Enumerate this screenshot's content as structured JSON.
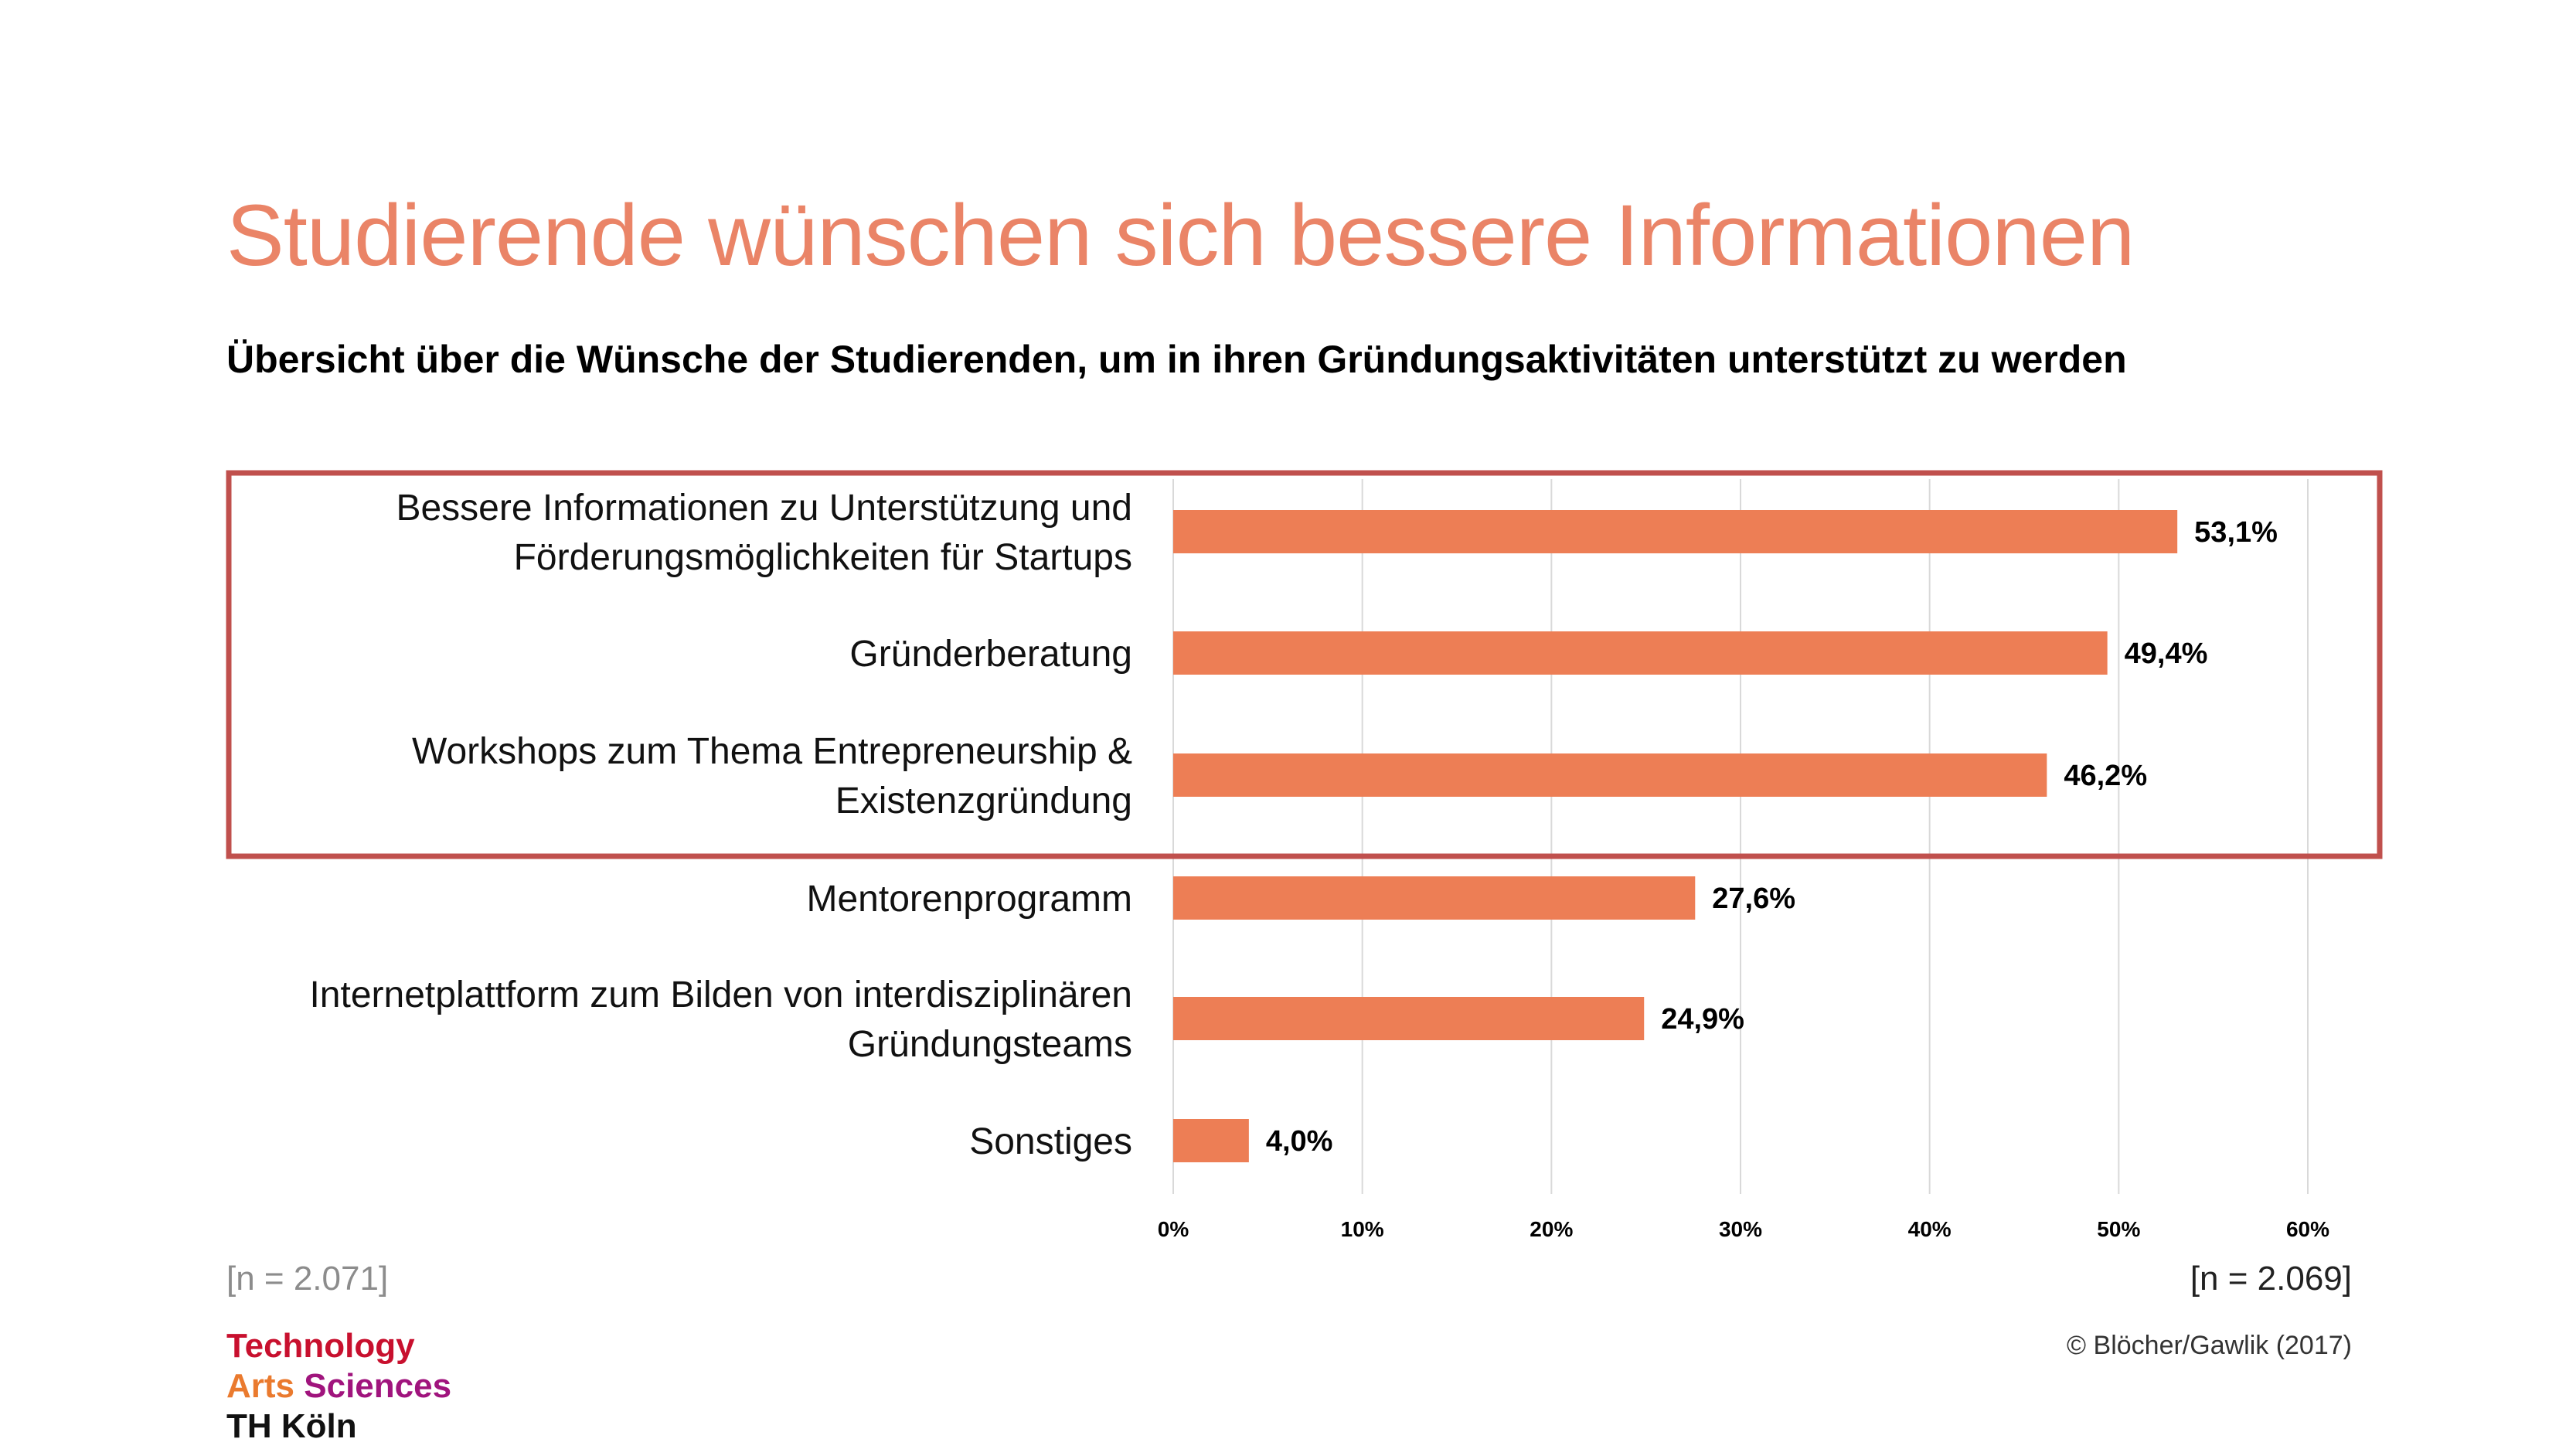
{
  "title": "Studierende wünschen sich bessere Informationen",
  "subtitle": "Übersicht über die Wünsche der Studierenden, um in ihren Gründungsaktivitäten unterstützt zu werden",
  "footer": {
    "n_left": "[n = 2.071]",
    "n_right": "[n = 2.069]",
    "copyright": "© Blöcher/Gawlik (2017)"
  },
  "logo": {
    "line1": "Technology",
    "line2a": "Arts",
    "line2b": "Sciences",
    "line3": "TH Köln"
  },
  "colors": {
    "bar": "#ed7e55",
    "highlight_box": "#c0504d",
    "title": "#ea8467",
    "grid": "#d9d9d9"
  },
  "chart_data": {
    "type": "bar",
    "orientation": "horizontal",
    "categories": [
      [
        "Bessere Informationen zu Unterstützung und",
        "Förderungsmöglichkeiten für Startups"
      ],
      [
        "Gründerberatung"
      ],
      [
        "Workshops zum Thema Entrepreneurship &",
        "Existenzgründung"
      ],
      [
        "Mentorenprogramm"
      ],
      [
        "Internetplattform zum Bilden von interdisziplinären",
        "Gründungsteams"
      ],
      [
        "Sonstiges"
      ]
    ],
    "values": [
      53.1,
      49.4,
      46.2,
      27.6,
      24.9,
      4.0
    ],
    "value_labels": [
      "53,1%",
      "49,4%",
      "46,2%",
      "27,6%",
      "24,9%",
      "4,0%"
    ],
    "xlim": [
      0,
      60
    ],
    "ticks": [
      0,
      10,
      20,
      30,
      40,
      50,
      60
    ],
    "tick_labels": [
      "0%",
      "10%",
      "20%",
      "30%",
      "40%",
      "50%",
      "60%"
    ],
    "grid": true,
    "highlighted_categories": [
      0,
      1,
      2
    ]
  }
}
